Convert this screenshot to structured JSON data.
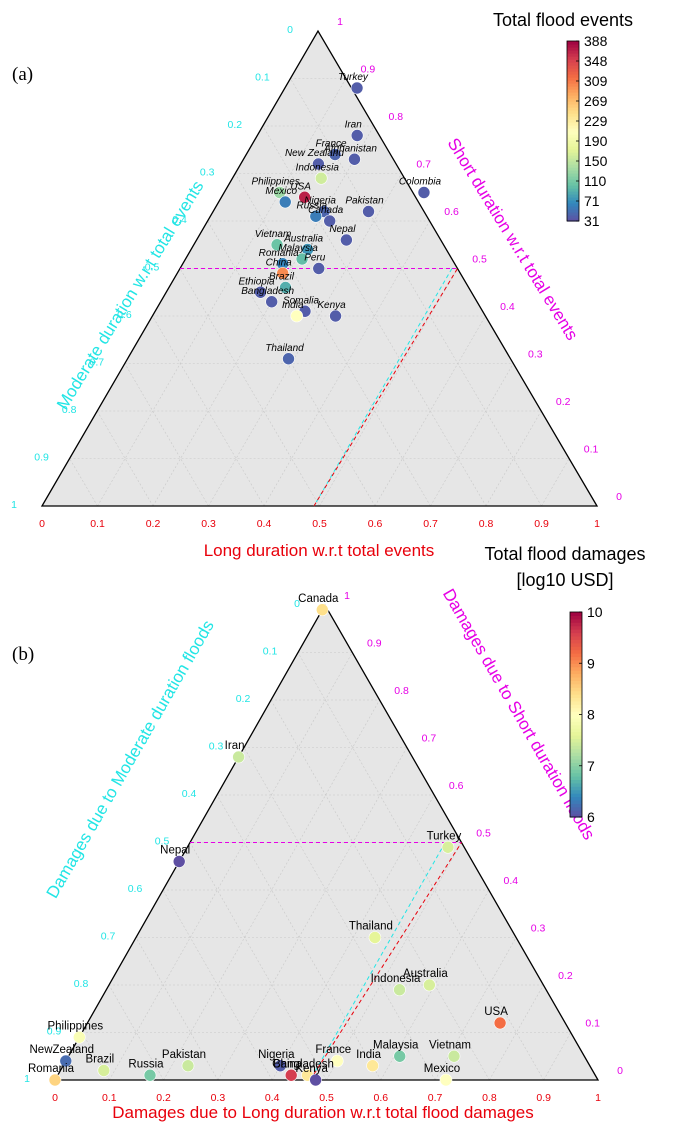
{
  "colors": {
    "triangle_fill": "#e6e6e6",
    "grid": "#c8c8c8",
    "outline": "#000000",
    "long_axis": "#e8000b",
    "moderate_axis": "#22e5e5",
    "short_axis": "#e600e6",
    "point_outline": "#ffffff"
  },
  "colormap": "Spectral_r",
  "chart_data": [
    {
      "type": "scatter",
      "subtype": "ternary",
      "panel_label": "(a)",
      "axes": {
        "long": {
          "label": "Long duration w.r.t total events",
          "ticks": [
            "0",
            "0.1",
            "0.2",
            "0.3",
            "0.4",
            "0.5",
            "0.6",
            "0.7",
            "0.8",
            "0.9",
            "1"
          ]
        },
        "moderate": {
          "label": "Moderate duration w.r.t total events",
          "ticks": [
            "0",
            "0.1",
            "0.2",
            "0.3",
            "0.4",
            "0.5",
            "0.6",
            "0.7",
            "0.8",
            "0.9",
            "1"
          ]
        },
        "short": {
          "label": "Short duration w.r.t total events",
          "ticks": [
            "0",
            "0.1",
            "0.2",
            "0.3",
            "0.4",
            "0.5",
            "0.6",
            "0.7",
            "0.8",
            "0.9",
            "1"
          ]
        }
      },
      "reference_point": {
        "long": 0.49,
        "short": 0.5
      },
      "colorbar": {
        "title_lines": [
          "Total flood events"
        ],
        "range": [
          31,
          388
        ],
        "ticks": [
          "388",
          "348",
          "309",
          "269",
          "229",
          "190",
          "150",
          "110",
          "71",
          "31"
        ]
      },
      "points": [
        {
          "name": "Turkey",
          "long": 0.13,
          "short": 0.88,
          "value": 40
        },
        {
          "name": "Iran",
          "long": 0.18,
          "short": 0.78,
          "value": 40
        },
        {
          "name": "France",
          "long": 0.16,
          "short": 0.74,
          "value": 45
        },
        {
          "name": "Afghanistan",
          "long": 0.2,
          "short": 0.73,
          "value": 40
        },
        {
          "name": "New Zealand",
          "long": 0.14,
          "short": 0.72,
          "value": 40
        },
        {
          "name": "Indonesia",
          "long": 0.16,
          "short": 0.69,
          "value": 160
        },
        {
          "name": "Philippines",
          "long": 0.1,
          "short": 0.66,
          "value": 130
        },
        {
          "name": "USA",
          "long": 0.15,
          "short": 0.65,
          "value": 370
        },
        {
          "name": "Mexico",
          "long": 0.12,
          "short": 0.64,
          "value": 60
        },
        {
          "name": "Colombia",
          "long": 0.36,
          "short": 0.66,
          "value": 40
        },
        {
          "name": "Nigeria",
          "long": 0.2,
          "short": 0.62,
          "value": 45
        },
        {
          "name": "Russia",
          "long": 0.19,
          "short": 0.61,
          "value": 60
        },
        {
          "name": "Canada",
          "long": 0.22,
          "short": 0.6,
          "value": 40
        },
        {
          "name": "Pakistan",
          "long": 0.28,
          "short": 0.62,
          "value": 40
        },
        {
          "name": "Vietnam",
          "long": 0.15,
          "short": 0.55,
          "value": 105
        },
        {
          "name": "Nepal",
          "long": 0.27,
          "short": 0.56,
          "value": 40
        },
        {
          "name": "Australia",
          "long": 0.21,
          "short": 0.54,
          "value": 75
        },
        {
          "name": "Malaysia",
          "long": 0.21,
          "short": 0.52,
          "value": 100
        },
        {
          "name": "Romania",
          "long": 0.18,
          "short": 0.51,
          "value": 65
        },
        {
          "name": "China",
          "long": 0.19,
          "short": 0.49,
          "value": 300
        },
        {
          "name": "Peru",
          "long": 0.25,
          "short": 0.5,
          "value": 40
        },
        {
          "name": "Brazil",
          "long": 0.21,
          "short": 0.46,
          "value": 90
        },
        {
          "name": "Ethiopia",
          "long": 0.17,
          "short": 0.45,
          "value": 40
        },
        {
          "name": "Bangladesh",
          "long": 0.2,
          "short": 0.43,
          "value": 40
        },
        {
          "name": "Somalia",
          "long": 0.27,
          "short": 0.41,
          "value": 40
        },
        {
          "name": "India",
          "long": 0.26,
          "short": 0.4,
          "value": 210
        },
        {
          "name": "Kenya",
          "long": 0.33,
          "short": 0.4,
          "value": 40
        },
        {
          "name": "Thailand",
          "long": 0.29,
          "short": 0.31,
          "value": 45
        }
      ]
    },
    {
      "type": "scatter",
      "subtype": "ternary",
      "panel_label": "(b)",
      "axes": {
        "long": {
          "label": "Damages due to Long duration w.r.t total flood damages",
          "ticks": [
            "0",
            "0.1",
            "0.2",
            "0.3",
            "0.4",
            "0.5",
            "0.6",
            "0.7",
            "0.8",
            "0.9",
            "1"
          ]
        },
        "moderate": {
          "label": "Damages due to Moderate duration floods",
          "ticks": [
            "0",
            "0.1",
            "0.2",
            "0.3",
            "0.4",
            "0.5",
            "0.6",
            "0.7",
            "0.8",
            "0.9",
            "1"
          ]
        },
        "short": {
          "label": "Damages due to Short duration floods",
          "ticks": [
            "0",
            "0.1",
            "0.2",
            "0.3",
            "0.4",
            "0.5",
            "0.6",
            "0.7",
            "0.8",
            "0.9",
            "1"
          ]
        }
      },
      "reference_point": {
        "long": 0.47,
        "short": 0.5
      },
      "colorbar": {
        "title_lines": [
          "Total flood damages",
          "[log10 USD]"
        ],
        "range": [
          6,
          10
        ],
        "ticks": [
          "10",
          "9",
          "8",
          "7",
          "6"
        ]
      },
      "points": [
        {
          "name": "Canada",
          "long": 0.0,
          "short": 0.99,
          "value": 8.4
        },
        {
          "name": "Iran",
          "long": 0.0,
          "short": 0.68,
          "value": 7.4
        },
        {
          "name": "Turkey",
          "long": 0.48,
          "short": 0.49,
          "value": 7.5
        },
        {
          "name": "Nepal",
          "long": 0.0,
          "short": 0.46,
          "value": 6.0
        },
        {
          "name": "Thailand",
          "long": 0.44,
          "short": 0.3,
          "value": 7.6
        },
        {
          "name": "Indonesia",
          "long": 0.54,
          "short": 0.19,
          "value": 7.4
        },
        {
          "name": "Australia",
          "long": 0.59,
          "short": 0.2,
          "value": 7.5
        },
        {
          "name": "USA",
          "long": 0.76,
          "short": 0.12,
          "value": 9.2
        },
        {
          "name": "Philippines",
          "long": 0.0,
          "short": 0.09,
          "value": 7.9
        },
        {
          "name": "NewZealand",
          "long": 0.0,
          "short": 0.04,
          "value": 6.2
        },
        {
          "name": "Romania",
          "long": 0.0,
          "short": 0.0,
          "value": 8.5
        },
        {
          "name": "Brazil",
          "long": 0.08,
          "short": 0.02,
          "value": 7.5
        },
        {
          "name": "Russia",
          "long": 0.17,
          "short": 0.01,
          "value": 6.9
        },
        {
          "name": "Pakistan",
          "long": 0.23,
          "short": 0.03,
          "value": 7.4
        },
        {
          "name": "Nigeria",
          "long": 0.4,
          "short": 0.03,
          "value": 6.1
        },
        {
          "name": "France",
          "long": 0.5,
          "short": 0.04,
          "value": 8.0
        },
        {
          "name": "India",
          "long": 0.57,
          "short": 0.03,
          "value": 8.3
        },
        {
          "name": "Malaysia",
          "long": 0.61,
          "short": 0.05,
          "value": 6.9
        },
        {
          "name": "Vietnam",
          "long": 0.71,
          "short": 0.05,
          "value": 7.4
        },
        {
          "name": "Mexico",
          "long": 0.72,
          "short": 0.0,
          "value": 8.0
        },
        {
          "name": "China",
          "long": 0.43,
          "short": 0.01,
          "value": 9.6
        },
        {
          "name": "Bangladesh",
          "long": 0.46,
          "short": 0.01,
          "value": 8.3
        },
        {
          "name": "Kenya",
          "long": 0.48,
          "short": 0.0,
          "value": 6.0
        }
      ]
    }
  ]
}
